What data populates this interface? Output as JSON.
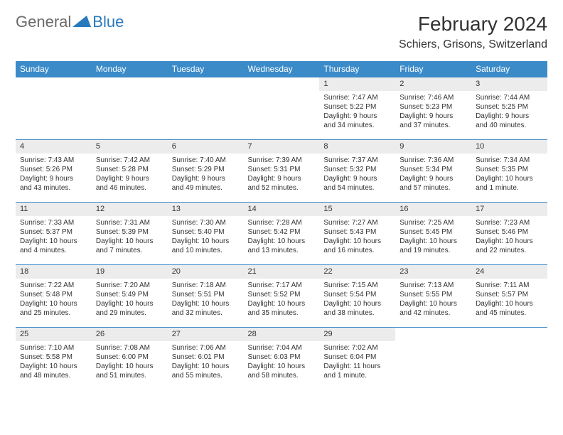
{
  "logo": {
    "general": "General",
    "blue": "Blue"
  },
  "title": "February 2024",
  "location": "Schiers, Grisons, Switzerland",
  "colors": {
    "header_bg": "#3b8bc9",
    "header_text": "#ffffff",
    "daynum_bg": "#ececec",
    "rule": "#3b8bc9",
    "text": "#333333",
    "logo_gray": "#6a6a6a",
    "logo_blue": "#2a79bd"
  },
  "day_names": [
    "Sunday",
    "Monday",
    "Tuesday",
    "Wednesday",
    "Thursday",
    "Friday",
    "Saturday"
  ],
  "weeks": [
    [
      null,
      null,
      null,
      null,
      {
        "n": "1",
        "sr": "7:47 AM",
        "ss": "5:22 PM",
        "dl1": "Daylight: 9 hours",
        "dl2": "and 34 minutes."
      },
      {
        "n": "2",
        "sr": "7:46 AM",
        "ss": "5:23 PM",
        "dl1": "Daylight: 9 hours",
        "dl2": "and 37 minutes."
      },
      {
        "n": "3",
        "sr": "7:44 AM",
        "ss": "5:25 PM",
        "dl1": "Daylight: 9 hours",
        "dl2": "and 40 minutes."
      }
    ],
    [
      {
        "n": "4",
        "sr": "7:43 AM",
        "ss": "5:26 PM",
        "dl1": "Daylight: 9 hours",
        "dl2": "and 43 minutes."
      },
      {
        "n": "5",
        "sr": "7:42 AM",
        "ss": "5:28 PM",
        "dl1": "Daylight: 9 hours",
        "dl2": "and 46 minutes."
      },
      {
        "n": "6",
        "sr": "7:40 AM",
        "ss": "5:29 PM",
        "dl1": "Daylight: 9 hours",
        "dl2": "and 49 minutes."
      },
      {
        "n": "7",
        "sr": "7:39 AM",
        "ss": "5:31 PM",
        "dl1": "Daylight: 9 hours",
        "dl2": "and 52 minutes."
      },
      {
        "n": "8",
        "sr": "7:37 AM",
        "ss": "5:32 PM",
        "dl1": "Daylight: 9 hours",
        "dl2": "and 54 minutes."
      },
      {
        "n": "9",
        "sr": "7:36 AM",
        "ss": "5:34 PM",
        "dl1": "Daylight: 9 hours",
        "dl2": "and 57 minutes."
      },
      {
        "n": "10",
        "sr": "7:34 AM",
        "ss": "5:35 PM",
        "dl1": "Daylight: 10 hours",
        "dl2": "and 1 minute."
      }
    ],
    [
      {
        "n": "11",
        "sr": "7:33 AM",
        "ss": "5:37 PM",
        "dl1": "Daylight: 10 hours",
        "dl2": "and 4 minutes."
      },
      {
        "n": "12",
        "sr": "7:31 AM",
        "ss": "5:39 PM",
        "dl1": "Daylight: 10 hours",
        "dl2": "and 7 minutes."
      },
      {
        "n": "13",
        "sr": "7:30 AM",
        "ss": "5:40 PM",
        "dl1": "Daylight: 10 hours",
        "dl2": "and 10 minutes."
      },
      {
        "n": "14",
        "sr": "7:28 AM",
        "ss": "5:42 PM",
        "dl1": "Daylight: 10 hours",
        "dl2": "and 13 minutes."
      },
      {
        "n": "15",
        "sr": "7:27 AM",
        "ss": "5:43 PM",
        "dl1": "Daylight: 10 hours",
        "dl2": "and 16 minutes."
      },
      {
        "n": "16",
        "sr": "7:25 AM",
        "ss": "5:45 PM",
        "dl1": "Daylight: 10 hours",
        "dl2": "and 19 minutes."
      },
      {
        "n": "17",
        "sr": "7:23 AM",
        "ss": "5:46 PM",
        "dl1": "Daylight: 10 hours",
        "dl2": "and 22 minutes."
      }
    ],
    [
      {
        "n": "18",
        "sr": "7:22 AM",
        "ss": "5:48 PM",
        "dl1": "Daylight: 10 hours",
        "dl2": "and 25 minutes."
      },
      {
        "n": "19",
        "sr": "7:20 AM",
        "ss": "5:49 PM",
        "dl1": "Daylight: 10 hours",
        "dl2": "and 29 minutes."
      },
      {
        "n": "20",
        "sr": "7:18 AM",
        "ss": "5:51 PM",
        "dl1": "Daylight: 10 hours",
        "dl2": "and 32 minutes."
      },
      {
        "n": "21",
        "sr": "7:17 AM",
        "ss": "5:52 PM",
        "dl1": "Daylight: 10 hours",
        "dl2": "and 35 minutes."
      },
      {
        "n": "22",
        "sr": "7:15 AM",
        "ss": "5:54 PM",
        "dl1": "Daylight: 10 hours",
        "dl2": "and 38 minutes."
      },
      {
        "n": "23",
        "sr": "7:13 AM",
        "ss": "5:55 PM",
        "dl1": "Daylight: 10 hours",
        "dl2": "and 42 minutes."
      },
      {
        "n": "24",
        "sr": "7:11 AM",
        "ss": "5:57 PM",
        "dl1": "Daylight: 10 hours",
        "dl2": "and 45 minutes."
      }
    ],
    [
      {
        "n": "25",
        "sr": "7:10 AM",
        "ss": "5:58 PM",
        "dl1": "Daylight: 10 hours",
        "dl2": "and 48 minutes."
      },
      {
        "n": "26",
        "sr": "7:08 AM",
        "ss": "6:00 PM",
        "dl1": "Daylight: 10 hours",
        "dl2": "and 51 minutes."
      },
      {
        "n": "27",
        "sr": "7:06 AM",
        "ss": "6:01 PM",
        "dl1": "Daylight: 10 hours",
        "dl2": "and 55 minutes."
      },
      {
        "n": "28",
        "sr": "7:04 AM",
        "ss": "6:03 PM",
        "dl1": "Daylight: 10 hours",
        "dl2": "and 58 minutes."
      },
      {
        "n": "29",
        "sr": "7:02 AM",
        "ss": "6:04 PM",
        "dl1": "Daylight: 11 hours",
        "dl2": "and 1 minute."
      },
      null,
      null
    ]
  ]
}
